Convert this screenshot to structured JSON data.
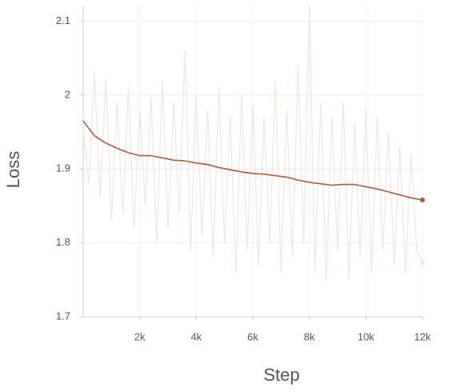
{
  "chart_data": {
    "type": "line",
    "x_label": "Step",
    "y_label": "Loss",
    "xlim": [
      0,
      12000
    ],
    "ylim": [
      1.7,
      2.12
    ],
    "xticks": [
      {
        "value": 2000,
        "label": "2k"
      },
      {
        "value": 4000,
        "label": "4k"
      },
      {
        "value": 6000,
        "label": "6k"
      },
      {
        "value": 8000,
        "label": "8k"
      },
      {
        "value": 10000,
        "label": "10k"
      },
      {
        "value": 12000,
        "label": "12k"
      }
    ],
    "yticks": [
      1.7,
      1.8,
      1.9,
      2,
      2.1
    ],
    "grid": true,
    "series": [
      {
        "color": "#f2e4de",
        "x": [
          0,
          200,
          400,
          600,
          800,
          1000,
          1200,
          1400,
          1600,
          1800,
          2000,
          2200,
          2400,
          2600,
          2800,
          3000,
          3200,
          3400,
          3600,
          3800,
          4000,
          4200,
          4400,
          4600,
          4800,
          5000,
          5200,
          5400,
          5600,
          5800,
          6000,
          6200,
          6400,
          6600,
          6800,
          7000,
          7200,
          7400,
          7600,
          7800,
          8000,
          8200,
          8400,
          8600,
          8800,
          9000,
          9200,
          9400,
          9600,
          9800,
          10000,
          10200,
          10400,
          10600,
          10800,
          11000,
          11200,
          11400,
          11600,
          11800,
          12000
        ],
        "values": [
          1.95,
          1.88,
          2.03,
          1.86,
          2.02,
          1.83,
          1.99,
          1.84,
          2.01,
          1.82,
          1.98,
          1.85,
          2.0,
          1.8,
          2.02,
          1.82,
          1.99,
          1.84,
          2.06,
          1.79,
          2.0,
          1.81,
          1.98,
          1.78,
          2.01,
          1.8,
          1.97,
          1.76,
          2.0,
          1.79,
          1.99,
          1.77,
          1.97,
          1.8,
          2.02,
          1.76,
          1.98,
          1.78,
          2.04,
          1.8,
          2.12,
          1.76,
          1.99,
          1.75,
          1.97,
          1.79,
          1.99,
          1.75,
          1.96,
          1.78,
          1.98,
          1.76,
          1.97,
          1.79,
          1.95,
          1.77,
          1.93,
          1.76,
          1.92,
          1.79,
          1.773
        ]
      },
      {
        "color": "#a65a43",
        "x": [
          0,
          400,
          800,
          1200,
          1600,
          2000,
          2400,
          2800,
          3200,
          3600,
          4000,
          4400,
          4800,
          5200,
          5600,
          6000,
          6400,
          6800,
          7200,
          7600,
          8000,
          8400,
          8800,
          9200,
          9600,
          10000,
          10400,
          10800,
          11200,
          11600,
          12000
        ],
        "values": [
          1.965,
          1.945,
          1.935,
          1.928,
          1.922,
          1.918,
          1.918,
          1.915,
          1.912,
          1.911,
          1.908,
          1.906,
          1.902,
          1.899,
          1.896,
          1.894,
          1.893,
          1.891,
          1.889,
          1.885,
          1.882,
          1.88,
          1.878,
          1.879,
          1.879,
          1.876,
          1.873,
          1.869,
          1.865,
          1.861,
          1.858
        ]
      }
    ]
  }
}
